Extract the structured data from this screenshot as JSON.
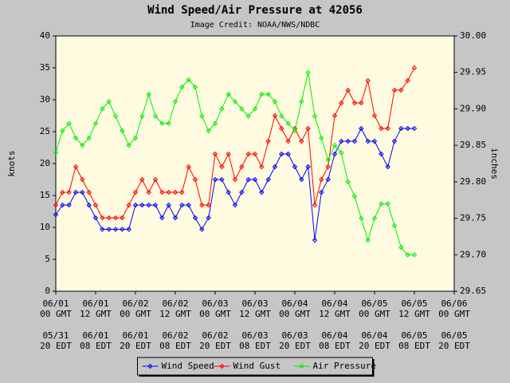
{
  "chart_data": {
    "type": "line",
    "title": "Wind Speed/Air Pressure at 42056",
    "subtitle": "Image Credit: NOAA/NWS/NDBC",
    "ylabel": "knots",
    "y2label": "inches",
    "xlim": [
      "06/01 00 GMT",
      "06/06 00 GMT"
    ],
    "xticks": [
      "06/01 00 GMT",
      "06/01 12 GMT",
      "06/02 00 GMT",
      "06/02 12 GMT",
      "06/03 00 GMT",
      "06/03 12 GMT",
      "06/04 00 GMT",
      "06/04 12 GMT",
      "06/05 00 GMT",
      "06/05 12 GMT",
      "06/06 00 GMT"
    ],
    "xtick_labels": [
      [
        "06/01",
        "00 GMT"
      ],
      [
        "06/01",
        "12 GMT"
      ],
      [
        "06/02",
        "00 GMT"
      ],
      [
        "06/02",
        "12 GMT"
      ],
      [
        "06/03",
        "00 GMT"
      ],
      [
        "06/03",
        "12 GMT"
      ],
      [
        "06/04",
        "00 GMT"
      ],
      [
        "06/04",
        "12 GMT"
      ],
      [
        "06/05",
        "00 GMT"
      ],
      [
        "06/05",
        "12 GMT"
      ],
      [
        "06/06",
        "00 GMT"
      ]
    ],
    "xtick_labels_edt": [
      [
        "05/31",
        "20 EDT"
      ],
      [
        "06/01",
        "08 EDT"
      ],
      [
        "06/01",
        "20 EDT"
      ],
      [
        "06/02",
        "08 EDT"
      ],
      [
        "06/02",
        "20 EDT"
      ],
      [
        "06/03",
        "08 EDT"
      ],
      [
        "06/03",
        "20 EDT"
      ],
      [
        "06/04",
        "08 EDT"
      ],
      [
        "06/04",
        "20 EDT"
      ],
      [
        "06/05",
        "08 EDT"
      ],
      [
        "06/05",
        "20 EDT"
      ]
    ],
    "ylim": [
      0,
      40
    ],
    "yticks": [
      0,
      5,
      10,
      15,
      20,
      25,
      30,
      35,
      40
    ],
    "y2lim": [
      29.65,
      30.0
    ],
    "y2ticks": [
      29.65,
      {
        "value": 29.7,
        "label": "29.70"
      },
      29.75,
      {
        "value": 29.8,
        "label": "29.80"
      },
      29.85,
      {
        "value": 29.9,
        "label": "29.90"
      },
      29.95,
      {
        "value": 30.0,
        "label": "30.00"
      }
    ],
    "legend": "bottom",
    "x": [
      "06/01 00 GMT",
      "06/01 02 GMT",
      "06/01 04 GMT",
      "06/01 06 GMT",
      "06/01 08 GMT",
      "06/01 10 GMT",
      "06/01 12 GMT",
      "06/01 14 GMT",
      "06/01 16 GMT",
      "06/01 18 GMT",
      "06/01 20 GMT",
      "06/01 22 GMT",
      "06/02 00 GMT",
      "06/02 02 GMT",
      "06/02 04 GMT",
      "06/02 06 GMT",
      "06/02 08 GMT",
      "06/02 10 GMT",
      "06/02 12 GMT",
      "06/02 14 GMT",
      "06/02 16 GMT",
      "06/02 18 GMT",
      "06/02 20 GMT",
      "06/02 22 GMT",
      "06/03 00 GMT",
      "06/03 02 GMT",
      "06/03 04 GMT",
      "06/03 06 GMT",
      "06/03 08 GMT",
      "06/03 10 GMT",
      "06/03 12 GMT",
      "06/03 14 GMT",
      "06/03 16 GMT",
      "06/03 18 GMT",
      "06/03 20 GMT",
      "06/03 22 GMT",
      "06/04 00 GMT",
      "06/04 02 GMT",
      "06/04 04 GMT",
      "06/04 06 GMT",
      "06/04 08 GMT",
      "06/04 10 GMT",
      "06/04 12 GMT",
      "06/04 14 GMT",
      "06/04 16 GMT",
      "06/04 18 GMT",
      "06/04 20 GMT",
      "06/04 22 GMT",
      "06/05 00 GMT",
      "06/05 02 GMT",
      "06/05 04 GMT",
      "06/05 06 GMT",
      "06/05 08 GMT",
      "06/05 10 GMT",
      "06/05 12 GMT"
    ],
    "series": [
      {
        "name": "Wind Speed",
        "color": "#0000ff",
        "axis": "y",
        "values": [
          12,
          13.5,
          13.5,
          15.5,
          15.5,
          13.5,
          11.5,
          9.7,
          9.7,
          9.7,
          9.7,
          9.7,
          13.5,
          13.5,
          13.5,
          13.5,
          11.5,
          13.5,
          11.5,
          13.5,
          13.5,
          11.5,
          9.7,
          11.5,
          17.5,
          17.5,
          15.5,
          13.5,
          15.5,
          17.5,
          17.5,
          15.5,
          17.5,
          19.5,
          21.5,
          21.5,
          19.5,
          17.5,
          19.5,
          8,
          15.5,
          17.5,
          21.5,
          23.5,
          23.5,
          23.5,
          25.5,
          23.5,
          23.5,
          21.5,
          19.5,
          23.5,
          25.5,
          25.5,
          25.5
        ]
      },
      {
        "name": "Wind Gust",
        "color": "#ff0000",
        "axis": "y",
        "values": [
          13.5,
          15.5,
          15.5,
          19.5,
          17.5,
          15.5,
          13.5,
          11.5,
          11.5,
          11.5,
          11.5,
          13.5,
          15.5,
          17.5,
          15.5,
          17.5,
          15.5,
          15.5,
          15.5,
          15.5,
          19.5,
          17.5,
          13.5,
          13.5,
          21.5,
          19.5,
          21.5,
          17.5,
          19.5,
          21.5,
          21.5,
          19.5,
          23.5,
          27.5,
          25.5,
          23.5,
          25.5,
          23.5,
          25.5,
          13.5,
          17.5,
          19.5,
          27.5,
          29.5,
          31.5,
          29.5,
          29.5,
          33,
          27.5,
          25.5,
          25.5,
          31.5,
          31.5,
          33,
          35
        ]
      },
      {
        "name": "Air Pressure",
        "color": "#00ee00",
        "axis": "y2",
        "values": [
          29.84,
          29.87,
          29.88,
          29.86,
          29.85,
          29.86,
          29.88,
          29.9,
          29.91,
          29.89,
          29.87,
          29.85,
          29.86,
          29.89,
          29.92,
          29.89,
          29.88,
          29.88,
          29.91,
          29.93,
          29.94,
          29.93,
          29.89,
          29.87,
          29.88,
          29.9,
          29.92,
          29.91,
          29.9,
          29.89,
          29.9,
          29.92,
          29.92,
          29.91,
          29.89,
          29.88,
          29.87,
          29.91,
          29.95,
          29.89,
          29.86,
          29.83,
          29.85,
          29.84,
          29.8,
          29.78,
          29.75,
          29.72,
          29.75,
          29.77,
          29.77,
          29.74,
          29.71,
          29.7,
          29.7
        ]
      }
    ]
  }
}
